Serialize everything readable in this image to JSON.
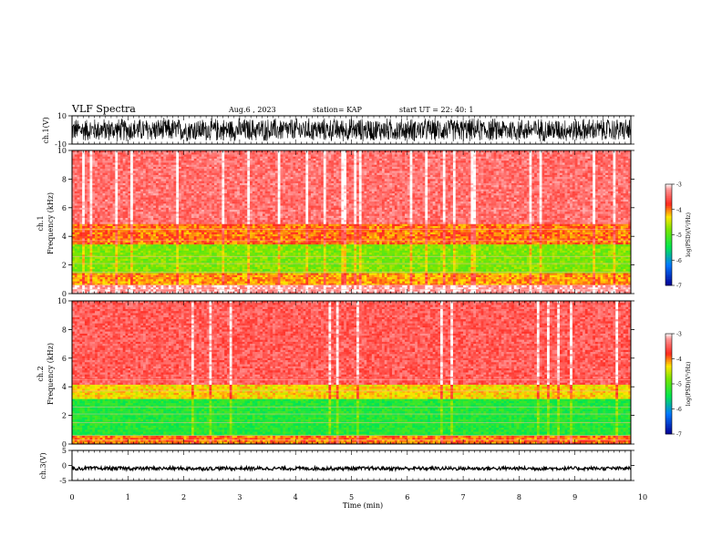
{
  "header": {
    "title": "VLF Spectra",
    "date": "Aug.6 , 2023",
    "station": "station= KAP",
    "start": "start UT = 22: 40: 1"
  },
  "colors": {
    "low": "#0000aa",
    "mid": "#00dd44",
    "yellow": "#ffdd00",
    "red": "#ff2a1a",
    "high": "#ffffff"
  },
  "chart_data": [
    {
      "type": "line",
      "name": "ch1-waveform",
      "ylabel": "ch.1(V)",
      "ylim": [
        -10,
        10
      ],
      "yticks": [
        "10",
        "-10"
      ],
      "xlim": [
        0,
        10
      ],
      "note_values": "dense waveform spanning about -9 to 9 V over full record"
    },
    {
      "type": "heatmap",
      "name": "ch1-spectrogram",
      "ylabel": "ch.1 Frequency (kHz)",
      "ylim": [
        0,
        10
      ],
      "yticks": [
        "0",
        "2",
        "4",
        "6",
        "8",
        "10"
      ],
      "xlim": [
        0,
        10
      ],
      "colorbar": {
        "label": "log(PSD)(V²/Hz)",
        "range": [
          -7,
          -3
        ],
        "ticks": [
          "-3",
          "-4",
          "-5",
          "-6",
          "-7"
        ]
      },
      "bands": [
        {
          "from_khz": 0,
          "to_khz": 0.6,
          "level": -3.2
        },
        {
          "from_khz": 0.6,
          "to_khz": 1.5,
          "level": -4.1
        },
        {
          "from_khz": 1.5,
          "to_khz": 3.5,
          "level": -4.8
        },
        {
          "from_khz": 3.5,
          "to_khz": 4.8,
          "level": -4.0
        },
        {
          "from_khz": 4.8,
          "to_khz": 10,
          "level": -3.4
        }
      ]
    },
    {
      "type": "heatmap",
      "name": "ch2-spectrogram",
      "ylabel": "ch.2 Frequency (kHz)",
      "ylim": [
        0,
        10
      ],
      "yticks": [
        "0",
        "2",
        "4",
        "6",
        "8",
        "10"
      ],
      "xlim": [
        0,
        10
      ],
      "colorbar": {
        "label": "log(PSD)(V²/Hz)",
        "range": [
          -7,
          -3
        ],
        "ticks": [
          "-3",
          "-4",
          "-5",
          "-6",
          "-7"
        ]
      },
      "bands": [
        {
          "from_khz": 0,
          "to_khz": 0.6,
          "level": -4.0
        },
        {
          "from_khz": 0.6,
          "to_khz": 3.2,
          "level": -5.3
        },
        {
          "from_khz": 3.2,
          "to_khz": 4.2,
          "level": -4.3
        },
        {
          "from_khz": 4.2,
          "to_khz": 10,
          "level": -3.5
        }
      ]
    },
    {
      "type": "line",
      "name": "ch3-waveform",
      "ylabel": "ch.3(V)",
      "ylim": [
        -5,
        5
      ],
      "yticks": [
        "5",
        "0",
        "-5"
      ],
      "xlim": [
        0,
        10
      ],
      "note_values": "flat trace around -1 V"
    }
  ],
  "xaxis": {
    "label": "Time (min)",
    "ticks": [
      "0",
      "1",
      "2",
      "3",
      "4",
      "5",
      "6",
      "7",
      "8",
      "9",
      "10"
    ]
  }
}
